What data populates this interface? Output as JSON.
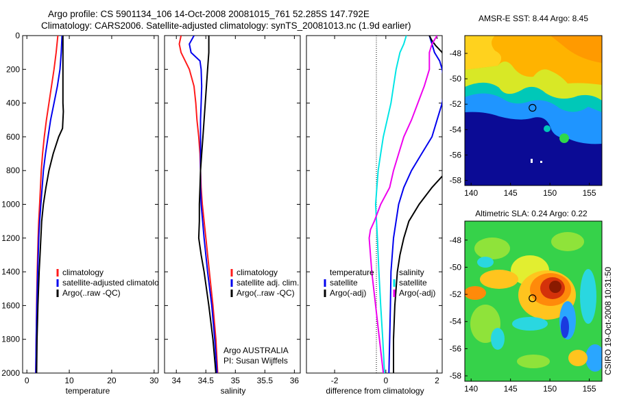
{
  "header": {
    "line1": "Argo profile: CS 5901134_106 14-Oct-2008 20081015_761 52.285S 147.792E",
    "line2": "Climatology: CARS2006. Satellite-adjusted climatology: synTS_20081013.nc (1.9d earlier)"
  },
  "credit": "CSIRO 19-Oct-2008 10:31:50",
  "colors": {
    "red": "#ff1a1a",
    "blue": "#0000ee",
    "black": "#000000",
    "cyan": "#00e5e5",
    "magenta": "#ee00ee"
  },
  "chart_data": [
    {
      "type": "line",
      "name": "temperature-panel",
      "xlabel": "temperature",
      "xlim": [
        -1,
        31
      ],
      "ylim": [
        2000,
        0
      ],
      "x_ticks": [
        0,
        10,
        20,
        30
      ],
      "y_ticks": [
        0,
        200,
        400,
        600,
        800,
        1000,
        1200,
        1400,
        1600,
        1800,
        2000
      ],
      "legend": [
        "climatology",
        "satellite-adjusted climatology",
        "Argo(..raw -QC)"
      ],
      "series": [
        {
          "name": "climatology",
          "color": "red",
          "depth": [
            0,
            100,
            200,
            300,
            400,
            500,
            600,
            700,
            800,
            900,
            1000,
            1100,
            1200,
            1400,
            1600,
            1800,
            2000
          ],
          "values": [
            7.3,
            6.9,
            6.4,
            5.8,
            5.2,
            4.6,
            4.1,
            3.7,
            3.4,
            3.2,
            3.0,
            2.8,
            2.65,
            2.45,
            2.3,
            2.2,
            2.1
          ]
        },
        {
          "name": "satellite-adjusted climatology",
          "color": "blue",
          "depth": [
            0,
            100,
            200,
            300,
            400,
            500,
            600,
            700,
            800,
            900,
            1000,
            1100,
            1200,
            1400,
            1600,
            1800,
            2000
          ],
          "values": [
            8.3,
            8.1,
            7.8,
            7.2,
            6.4,
            5.6,
            5.0,
            4.4,
            3.9,
            3.6,
            3.3,
            3.0,
            2.8,
            2.55,
            2.35,
            2.2,
            2.1
          ]
        },
        {
          "name": "Argo(..raw -QC)",
          "color": "black",
          "depth": [
            0,
            50,
            100,
            200,
            300,
            400,
            450,
            500,
            550,
            600,
            700,
            800,
            900,
            1000,
            1100,
            1200,
            1300,
            1400,
            1600,
            1800,
            2000
          ],
          "values": [
            8.5,
            8.5,
            8.5,
            8.5,
            8.5,
            8.5,
            8.6,
            8.5,
            8.4,
            7.5,
            6.2,
            5.2,
            4.5,
            3.9,
            3.5,
            3.3,
            3.1,
            2.9,
            2.6,
            2.4,
            2.3
          ]
        }
      ]
    },
    {
      "type": "line",
      "name": "salinity-panel",
      "xlabel": "salinity",
      "xlim": [
        33.8,
        36.1
      ],
      "ylim": [
        2000,
        0
      ],
      "x_ticks": [
        34,
        34.5,
        35,
        35.5,
        36
      ],
      "x_tick_labels": [
        "34",
        "34.5",
        "35",
        "35.5",
        "36"
      ],
      "legend": [
        "climatology",
        "satellite adj. clim.",
        "Argo(..raw -QC)"
      ],
      "annotations": [
        "Argo AUSTRALIA",
        "PI: Susan Wijffels"
      ],
      "series": [
        {
          "name": "climatology",
          "color": "red",
          "depth": [
            0,
            50,
            100,
            200,
            300,
            400,
            500,
            600,
            700,
            800,
            900,
            950,
            1000,
            1200,
            1400,
            1600,
            1800,
            2000
          ],
          "values": [
            34.08,
            34.05,
            34.08,
            34.22,
            34.3,
            34.33,
            34.35,
            34.38,
            34.4,
            34.41,
            34.42,
            34.43,
            34.44,
            34.5,
            34.56,
            34.62,
            34.67,
            34.7
          ]
        },
        {
          "name": "satellite adj. clim.",
          "color": "blue",
          "depth": [
            0,
            50,
            100,
            150,
            200,
            300,
            400,
            500,
            600,
            700,
            800,
            900,
            1000,
            1200,
            1400,
            1600,
            1800,
            2000
          ],
          "values": [
            34.3,
            34.22,
            34.25,
            34.4,
            34.42,
            34.43,
            34.42,
            34.41,
            34.41,
            34.41,
            34.41,
            34.41,
            34.42,
            34.47,
            34.53,
            34.6,
            34.65,
            34.69
          ]
        },
        {
          "name": "Argo(..raw -QC)",
          "color": "black",
          "depth": [
            0,
            100,
            200,
            300,
            400,
            500,
            600,
            700,
            800,
            900,
            1000,
            1100,
            1200,
            1300,
            1400,
            1600,
            1800,
            2000
          ],
          "values": [
            34.55,
            34.55,
            34.53,
            34.51,
            34.49,
            34.47,
            34.45,
            34.43,
            34.41,
            34.4,
            34.39,
            34.39,
            34.38,
            34.42,
            34.47,
            34.55,
            34.62,
            34.67
          ]
        }
      ]
    },
    {
      "type": "line",
      "name": "difference-panel",
      "xlabel": "difference from climatology",
      "xlim": [
        -3.1,
        2.2
      ],
      "ylim": [
        2000,
        0
      ],
      "x_ticks": [
        -2,
        0,
        2
      ],
      "legend_temperature": [
        "temperature",
        "satellite",
        "Argo(-adj)"
      ],
      "legend_salinity": [
        "salinity",
        "satellite",
        "Argo(-adj)"
      ],
      "series": [
        {
          "name": "temperature satellite",
          "color": "blue",
          "depth": [
            0,
            50,
            100,
            150,
            200,
            300,
            400,
            500,
            600,
            700,
            800,
            900,
            1000,
            1200,
            1400,
            1600,
            1800,
            2000
          ],
          "values": [
            1.7,
            1.8,
            1.9,
            2.1,
            2.2,
            2.3,
            2.2,
            2.0,
            1.8,
            1.4,
            1.0,
            0.7,
            0.5,
            0.3,
            0.2,
            0.18,
            0.15,
            0.12
          ]
        },
        {
          "name": "temperature Argo(-adj)",
          "color": "black",
          "depth": [
            0,
            30,
            60,
            100,
            200,
            300,
            400,
            450,
            500,
            550,
            600,
            700,
            800,
            900,
            1000,
            1100,
            1200,
            1300,
            1400,
            1600,
            1800,
            2000
          ],
          "values": [
            1.7,
            1.8,
            1.95,
            2.2,
            2.4,
            2.6,
            2.8,
            2.9,
            2.9,
            2.95,
            2.9,
            2.8,
            2.4,
            1.8,
            1.3,
            0.9,
            0.7,
            0.55,
            0.45,
            0.35,
            0.3,
            0.3
          ]
        },
        {
          "name": "salinity satellite",
          "color": "cyan",
          "depth": [
            0,
            50,
            100,
            200,
            300,
            400,
            500,
            600,
            700,
            800,
            900,
            1000,
            1200,
            1400,
            1600,
            1800,
            2000
          ],
          "values": [
            0.8,
            0.7,
            0.55,
            0.4,
            0.3,
            0.2,
            0.05,
            -0.1,
            -0.2,
            -0.3,
            -0.35,
            -0.4,
            -0.33,
            -0.27,
            -0.2,
            -0.12,
            -0.05
          ]
        },
        {
          "name": "salinity Argo(-adj)",
          "color": "magenta",
          "depth": [
            0,
            50,
            100,
            200,
            300,
            400,
            500,
            600,
            700,
            800,
            900,
            1000,
            1100,
            1150,
            1200,
            1400,
            1600,
            1800,
            2000
          ],
          "values": [
            2.0,
            1.8,
            1.7,
            1.7,
            1.5,
            1.25,
            1.0,
            0.7,
            0.5,
            0.3,
            0.15,
            -0.2,
            -0.45,
            -0.6,
            -0.65,
            -0.55,
            -0.4,
            -0.25,
            -0.1
          ]
        }
      ]
    },
    {
      "type": "heatmap",
      "name": "sst-map",
      "title": "AMSR-E SST: 8.44 Argo: 8.45",
      "xlim": [
        139.2,
        156.6
      ],
      "ylim": [
        -58.4,
        -46.6
      ],
      "x_ticks": [
        140,
        145,
        150,
        155
      ],
      "y_ticks": [
        -48,
        -50,
        -52,
        -54,
        -56,
        -58
      ],
      "marker": {
        "lon": 147.792,
        "lat": -52.285
      }
    },
    {
      "type": "heatmap",
      "name": "sla-map",
      "title": "Altimetric SLA: 0.24 Argo: 0.22",
      "xlim": [
        139.2,
        156.6
      ],
      "ylim": [
        -58.4,
        -46.6
      ],
      "x_ticks": [
        140,
        145,
        150,
        155
      ],
      "y_ticks": [
        -48,
        -50,
        -52,
        -54,
        -56,
        -58
      ],
      "marker": {
        "lon": 147.792,
        "lat": -52.285
      }
    }
  ]
}
